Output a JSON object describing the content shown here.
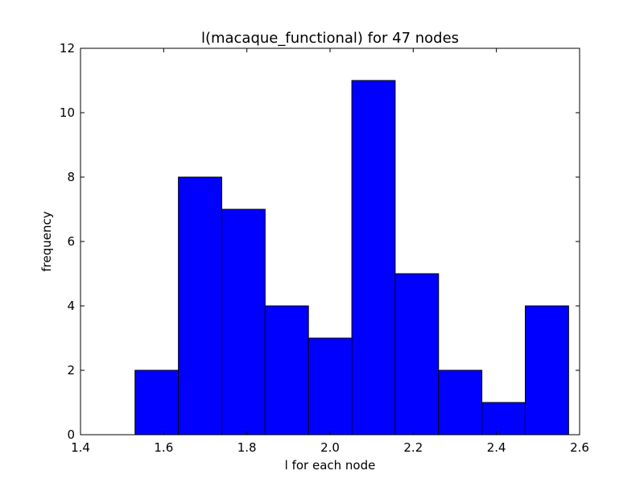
{
  "chart_data": {
    "type": "bar",
    "title": "l(macaque_functional) for 47 nodes",
    "xlabel": "l for each node",
    "ylabel": "frequency",
    "bins": [
      {
        "x0": 1.5311,
        "x1": 1.6354,
        "value": 2
      },
      {
        "x0": 1.6354,
        "x1": 1.7396,
        "value": 8
      },
      {
        "x0": 1.7396,
        "x1": 1.8439,
        "value": 7
      },
      {
        "x0": 1.8439,
        "x1": 1.9481,
        "value": 4
      },
      {
        "x0": 1.9481,
        "x1": 2.0524,
        "value": 3
      },
      {
        "x0": 2.0524,
        "x1": 2.1566,
        "value": 11
      },
      {
        "x0": 2.1566,
        "x1": 2.2609,
        "value": 5
      },
      {
        "x0": 2.2609,
        "x1": 2.3651,
        "value": 2
      },
      {
        "x0": 2.3651,
        "x1": 2.4694,
        "value": 1
      },
      {
        "x0": 2.4694,
        "x1": 2.5736,
        "value": 4
      }
    ],
    "xlim": [
      1.4,
      2.6
    ],
    "ylim": [
      0,
      12
    ],
    "xticks": [
      "1.4",
      "1.6",
      "1.8",
      "2.0",
      "2.2",
      "2.4",
      "2.6"
    ],
    "yticks": [
      "0",
      "2",
      "4",
      "6",
      "8",
      "10",
      "12"
    ],
    "bar_color": "#0000ff",
    "edge_color": "#000000",
    "grid": false,
    "legend": "none"
  }
}
